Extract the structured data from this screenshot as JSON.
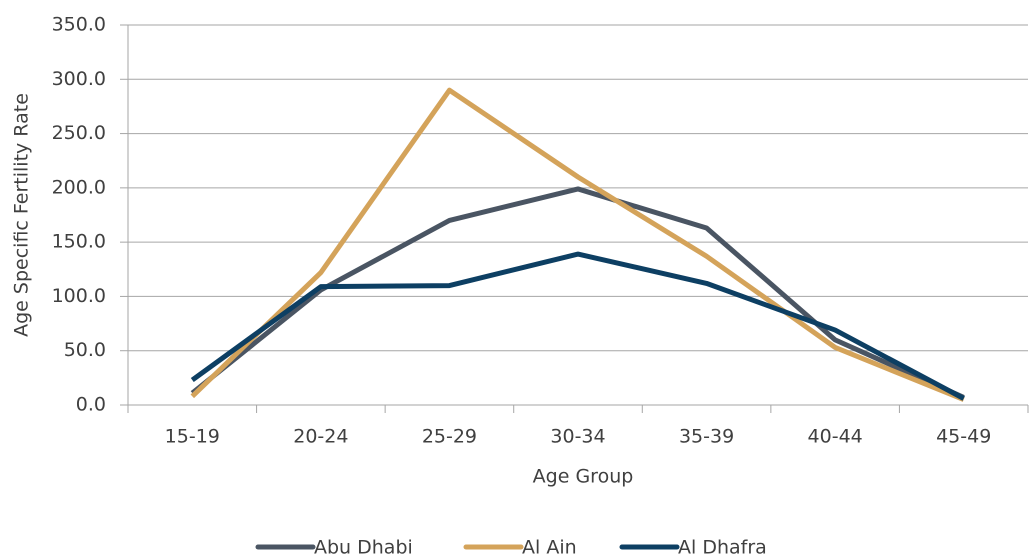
{
  "chart_data": {
    "type": "line",
    "x_label": "Age Group",
    "y_label": "Age Specific Fertility Rate",
    "categories": [
      "15-19",
      "20-24",
      "25-29",
      "30-34",
      "35-39",
      "40-44",
      "45-49"
    ],
    "series": [
      {
        "name": "Abu Dhabi",
        "color": "#4a5563",
        "values": [
          11,
          106,
          170,
          199,
          163,
          60,
          7
        ]
      },
      {
        "name": "Al Ain",
        "color": "#d4a35a",
        "values": [
          8,
          122,
          290,
          210,
          137,
          53,
          5
        ]
      },
      {
        "name": "Al Dhafra",
        "color": "#0d3f63",
        "values": [
          23,
          109,
          110,
          139,
          112,
          69,
          6
        ]
      }
    ],
    "ylim": [
      0,
      350
    ],
    "yticks": [
      {
        "value": 0,
        "label": "0.0"
      },
      {
        "value": 50,
        "label": "50.0"
      },
      {
        "value": 100,
        "label": "100.0"
      },
      {
        "value": 150,
        "label": "150.0"
      },
      {
        "value": 200,
        "label": "200.0"
      },
      {
        "value": 250,
        "label": "250.0"
      },
      {
        "value": 300,
        "label": "300.0"
      },
      {
        "value": 350,
        "label": "350.0"
      }
    ],
    "grid": true,
    "legend": "bottom"
  }
}
